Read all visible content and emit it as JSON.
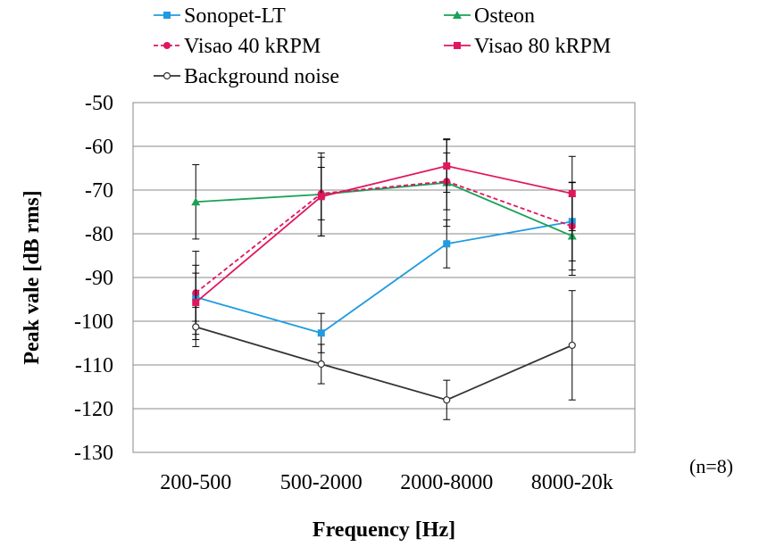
{
  "chart_data": {
    "type": "line",
    "title": "",
    "xlabel": "Frequency [Hz]",
    "ylabel": "Peak vale [dB rms]",
    "categories": [
      "200-500",
      "500-2000",
      "2000-8000",
      "8000-20k"
    ],
    "ylim": [
      -130,
      -50
    ],
    "yticks": [
      -50,
      -60,
      -70,
      -80,
      -90,
      -100,
      -110,
      -120,
      -130
    ],
    "grid": "horizontal",
    "legend_position": "top",
    "note": "(n=8)",
    "series": [
      {
        "name": "Sonopet-LT",
        "color": "#1f9be0",
        "marker": "square",
        "dash": "solid",
        "values": [
          -94.5,
          -102.7,
          -82.3,
          -77.2
        ],
        "errors": [
          5.5,
          4.5,
          5.5,
          9.0
        ]
      },
      {
        "name": "Osteon",
        "color": "#1aa157",
        "marker": "triangle",
        "dash": "solid",
        "values": [
          -72.7,
          -71.0,
          -68.3,
          -80.5
        ],
        "errors": [
          8.5,
          9.5,
          10.0,
          9.0
        ]
      },
      {
        "name": "Visao 40 kRPM",
        "color": "#e0165f",
        "marker": "circle",
        "dash": "dashed",
        "values": [
          -93.5,
          -70.8,
          -68.0,
          -78.3
        ],
        "errors": [
          9.5,
          6.0,
          6.5,
          10.0
        ]
      },
      {
        "name": "Visao 80 kRPM",
        "color": "#e0165f",
        "marker": "square",
        "dash": "solid",
        "values": [
          -95.7,
          -71.5,
          -64.5,
          -70.8
        ],
        "errors": [
          8.5,
          9.0,
          6.0,
          8.5
        ]
      },
      {
        "name": "Background noise",
        "color": "#333333",
        "marker": "open-circle",
        "dash": "solid",
        "values": [
          -101.3,
          -109.8,
          -118.0,
          -105.5
        ],
        "errors": [
          4.5,
          4.5,
          4.5,
          12.5
        ]
      }
    ]
  }
}
